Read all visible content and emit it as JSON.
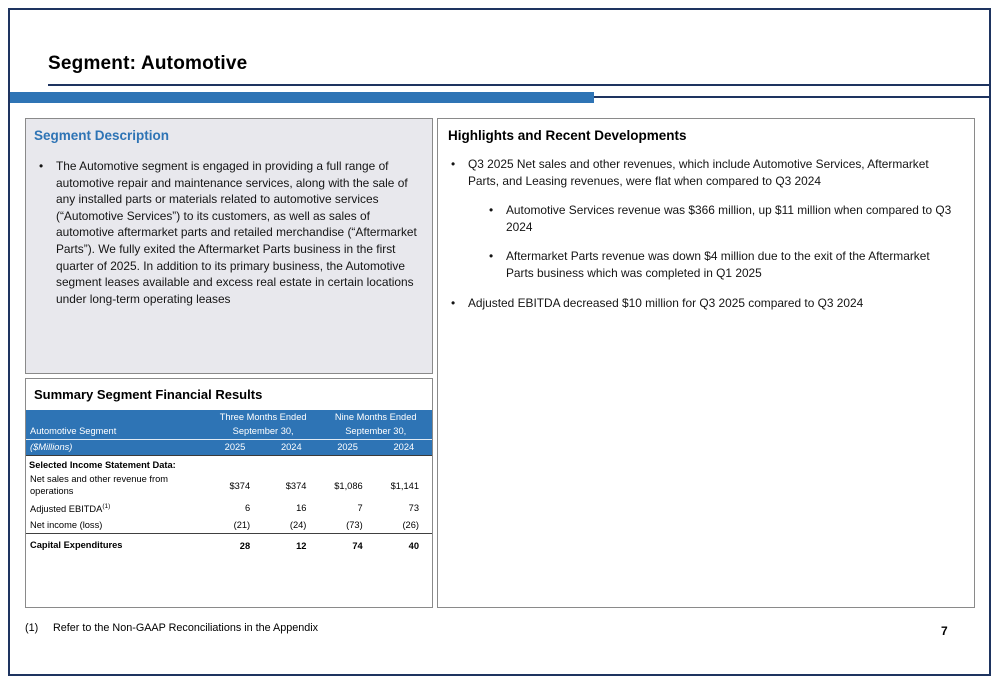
{
  "page": {
    "title": "Segment: Automotive",
    "page_number": "7",
    "footnote_marker": "(1)",
    "footnote_text": "Refer to the Non-GAAP Reconciliations in the Appendix"
  },
  "colors": {
    "accent_blue": "#2E74B5",
    "frame_navy": "#1E3460",
    "panel_gray": "#E8E8ED"
  },
  "segment_description": {
    "heading": "Segment Description",
    "bullet": "The Automotive segment is engaged in providing a full range of automotive repair and maintenance services, along with the sale of any installed parts or materials related to automotive services (“Automotive Services”) to its customers, as well as sales of automotive aftermarket parts and retailed merchandise (“Aftermarket Parts”). We fully exited the Aftermarket Parts business in the first quarter of 2025. In addition to its primary business, the Automotive segment leases available and excess real estate in certain locations under long-term operating leases"
  },
  "highlights": {
    "heading": "Highlights and Recent Developments",
    "items": [
      {
        "text": "Q3 2025 Net sales and other revenues, which include Automotive Services, Aftermarket Parts, and Leasing revenues, were flat when compared to Q3 2024",
        "sub_items": [
          "Automotive Services revenue was $366 million, up $11 million when compared to Q3 2024",
          "Aftermarket Parts revenue was down $4 million due to the exit of the Aftermarket Parts business which was completed in Q1 2025"
        ]
      },
      {
        "text": "Adjusted EBITDA decreased $10 million for Q3 2025 compared to Q3 2024",
        "sub_items": []
      }
    ]
  },
  "financials": {
    "heading": "Summary Segment Financial Results",
    "table": {
      "group1": "Three Months Ended",
      "group2": "Nine Months Ended",
      "date_subheader": "September 30,",
      "row_label_header": "Automotive Segment",
      "units": "($Millions)",
      "years": [
        "2025",
        "2024",
        "2025",
        "2024"
      ],
      "section_label": "Selected Income Statement Data:",
      "rows": [
        {
          "label": "Net sales and other revenue from operations",
          "values": [
            "$374",
            "$374",
            "$1,086",
            "$1,141"
          ]
        },
        {
          "label": "Adjusted EBITDA",
          "footnote_ref": "(1)",
          "values": [
            "6",
            "16",
            "7",
            "73"
          ]
        },
        {
          "label": "Net income (loss)",
          "values": [
            "(21)",
            "(24)",
            "(73)",
            "(26)"
          ]
        },
        {
          "label": "Capital Expenditures",
          "values": [
            "28",
            "12",
            "74",
            "40"
          ]
        }
      ]
    }
  }
}
